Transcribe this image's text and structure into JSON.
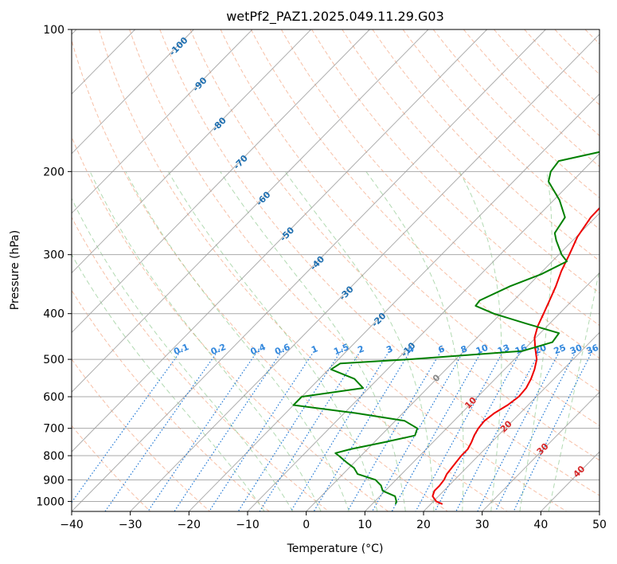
{
  "chart_data": {
    "type": "line",
    "subtype": "skew-t log-p sounding",
    "title": "wetPf2_PAZ1.2025.049.11.29.G03",
    "xlabel": "Temperature (°C)",
    "ylabel": "Pressure (hPa)",
    "xlim": [
      -40,
      50
    ],
    "ylim": [
      1050,
      100
    ],
    "y_scale": "log",
    "grid": true,
    "x_ticks": [
      -40,
      -30,
      -20,
      -10,
      0,
      10,
      20,
      30,
      40,
      50
    ],
    "x_tick_labels": [
      "−40",
      "−30",
      "−20",
      "−10",
      "0",
      "10",
      "20",
      "30",
      "40",
      "50"
    ],
    "y_ticks": [
      1000,
      900,
      800,
      700,
      600,
      500,
      400,
      300,
      200,
      100
    ],
    "y_tick_labels": [
      "1000",
      "900",
      "800",
      "700",
      "600",
      "500",
      "400",
      "300",
      "200",
      "100"
    ],
    "colors": {
      "temperature": "#ee0000",
      "dewpoint": "#008000",
      "isotherm": "#999999",
      "dry_adiabat": "#f4a582",
      "moist_adiabat": "#7fc27f",
      "mixing_ratio": "#1f77d4",
      "height_label": "#1f6fb0",
      "wetbulb_label": "#d62728"
    },
    "series": [
      {
        "role": "temperature",
        "points": [
          [
            1013,
            22
          ],
          [
            1000,
            20.5
          ],
          [
            975,
            19
          ],
          [
            950,
            18.4
          ],
          [
            925,
            18.4
          ],
          [
            900,
            18.2
          ],
          [
            875,
            17.7
          ],
          [
            850,
            17.5
          ],
          [
            825,
            17.3
          ],
          [
            800,
            17.1
          ],
          [
            775,
            17.1
          ],
          [
            750,
            16.6
          ],
          [
            725,
            15.9
          ],
          [
            700,
            15.4
          ],
          [
            675,
            15.2
          ],
          [
            650,
            15.6
          ],
          [
            625,
            16.5
          ],
          [
            600,
            17
          ],
          [
            575,
            16.8
          ],
          [
            550,
            16.1
          ],
          [
            525,
            15.1
          ],
          [
            500,
            13.8
          ],
          [
            475,
            11.8
          ],
          [
            450,
            9.8
          ],
          [
            425,
            8.4
          ],
          [
            400,
            7.3
          ],
          [
            375,
            6.1
          ],
          [
            350,
            4.8
          ],
          [
            325,
            3.2
          ],
          [
            300,
            1.8
          ],
          [
            275,
            0.2
          ],
          [
            250,
            -0.8
          ],
          [
            225,
            -0.9
          ],
          [
            210,
            1
          ],
          [
            200,
            2.9
          ],
          [
            185,
            7.7
          ],
          [
            170,
            12.6
          ],
          [
            155,
            17
          ],
          [
            145,
            17.7
          ],
          [
            130,
            18
          ],
          [
            115,
            19.8
          ],
          [
            100,
            20.5
          ]
        ]
      },
      {
        "role": "dewpoint",
        "points": [
          [
            1013,
            14
          ],
          [
            1000,
            13.7
          ],
          [
            975,
            12.6
          ],
          [
            950,
            9.6
          ],
          [
            925,
            8.4
          ],
          [
            900,
            6.5
          ],
          [
            875,
            2.5
          ],
          [
            850,
            0.9
          ],
          [
            825,
            -1.5
          ],
          [
            800,
            -3.8
          ],
          [
            790,
            -4.8
          ],
          [
            775,
            -2.9
          ],
          [
            750,
            1.6
          ],
          [
            725,
            5.8
          ],
          [
            700,
            5
          ],
          [
            675,
            1.6
          ],
          [
            650,
            -8
          ],
          [
            625,
            -20
          ],
          [
            600,
            -20
          ],
          [
            575,
            -11
          ],
          [
            550,
            -14
          ],
          [
            525,
            -19.6
          ],
          [
            510,
            -19
          ],
          [
            500,
            -8
          ],
          [
            480,
            10
          ],
          [
            460,
            13.6
          ],
          [
            440,
            13.2
          ],
          [
            420,
            6
          ],
          [
            400,
            -1.2
          ],
          [
            385,
            -5.6
          ],
          [
            375,
            -5.8
          ],
          [
            350,
            -3
          ],
          [
            330,
            0.3
          ],
          [
            310,
            2.5
          ],
          [
            300,
            0.5
          ],
          [
            280,
            -2.8
          ],
          [
            270,
            -4.3
          ],
          [
            250,
            -5.2
          ],
          [
            230,
            -9
          ],
          [
            210,
            -14
          ],
          [
            200,
            -15.3
          ],
          [
            190,
            -15.7
          ],
          [
            180,
            -9
          ],
          [
            170,
            -3.5
          ],
          [
            160,
            -1.2
          ],
          [
            150,
            -2
          ],
          [
            140,
            -2.7
          ],
          [
            130,
            -2
          ],
          [
            120,
            -0.6
          ],
          [
            110,
            -0.4
          ],
          [
            100,
            1
          ]
        ]
      }
    ],
    "height_labels": [
      {
        "text": "-100",
        "p": 108
      },
      {
        "text": "-90",
        "p": 130
      },
      {
        "text": "-80",
        "p": 158
      },
      {
        "text": "-70",
        "p": 190
      },
      {
        "text": "-60",
        "p": 227
      },
      {
        "text": "-50",
        "p": 270
      },
      {
        "text": "-40",
        "p": 311
      },
      {
        "text": "-30",
        "p": 360
      },
      {
        "text": "-20",
        "p": 410
      },
      {
        "text": "-10",
        "p": 474
      }
    ],
    "mixing_ratio_labels": [
      "0.1",
      "0.2",
      "0.4",
      "0.6",
      "1",
      "1.5",
      "2",
      "3",
      "4",
      "6",
      "8",
      "10",
      "13",
      "16",
      "20",
      "25",
      "30",
      "36"
    ],
    "mixing_ratio_values": [
      0.1,
      0.2,
      0.4,
      0.6,
      1,
      1.5,
      2,
      3,
      4,
      6,
      8,
      10,
      13,
      16,
      20,
      25,
      30,
      36
    ],
    "mixing_ratio_label_p": 475,
    "wetbulb_labels": [
      {
        "text": "0",
        "p": 545
      },
      {
        "text": "10",
        "p": 615
      },
      {
        "text": "20",
        "p": 690
      },
      {
        "text": "30",
        "p": 770
      },
      {
        "text": "40",
        "p": 860
      }
    ],
    "isotherms": [
      -150,
      -140,
      -130,
      -120,
      -110,
      -100,
      -90,
      -80,
      -70,
      -60,
      -50,
      -40,
      -30,
      -20,
      -10,
      0,
      10,
      20,
      30,
      40,
      50
    ],
    "dry_adiabats": [
      -30,
      -20,
      -10,
      0,
      10,
      20,
      30,
      40,
      50,
      60,
      70,
      80,
      90,
      100,
      110,
      120,
      130,
      140,
      150,
      160,
      170,
      180,
      190,
      200,
      210,
      220,
      230,
      240
    ],
    "moist_adiabats": [
      -10,
      -5,
      0,
      5,
      10,
      15,
      20,
      25,
      30,
      35,
      40
    ]
  }
}
